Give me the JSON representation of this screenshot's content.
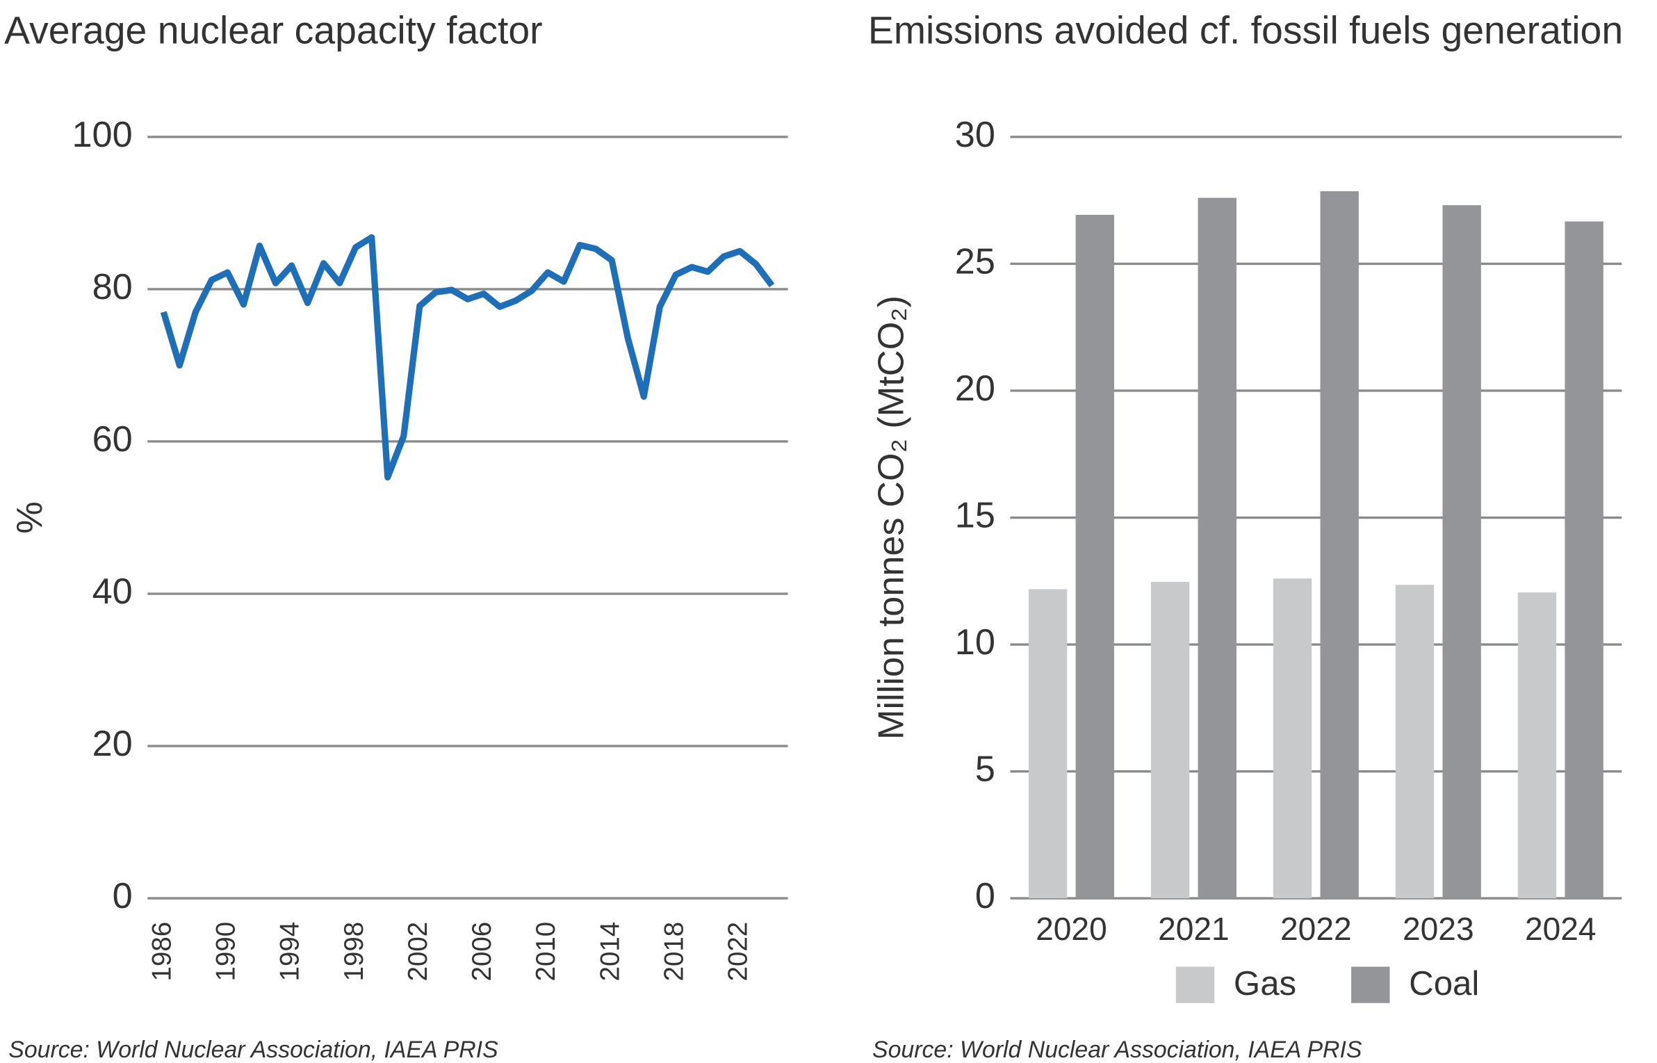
{
  "chart_data": [
    {
      "type": "line",
      "title": "Average nuclear capacity factor",
      "ylabel": "%",
      "x": [
        1986,
        1987,
        1988,
        1989,
        1990,
        1991,
        1992,
        1993,
        1994,
        1995,
        1996,
        1997,
        1998,
        1999,
        2000,
        2001,
        2002,
        2003,
        2004,
        2005,
        2006,
        2007,
        2008,
        2009,
        2010,
        2011,
        2012,
        2013,
        2014,
        2015,
        2016,
        2017,
        2018,
        2019,
        2020,
        2021,
        2022,
        2023,
        2024
      ],
      "series": [
        {
          "name": "Average nuclear capacity factor",
          "color": "#1f6fb8",
          "values": [
            77,
            70,
            77,
            81.2,
            82.2,
            78,
            85.7,
            80.8,
            83.1,
            78.2,
            83.4,
            80.8,
            85.5,
            86.8,
            55.3,
            60.7,
            77.8,
            79.6,
            79.9,
            78.7,
            79.4,
            77.7,
            78.5,
            79.8,
            82.2,
            81,
            85.8,
            85.3,
            83.8,
            73.6,
            65.9,
            77.7,
            81.9,
            82.9,
            82.3,
            84.3,
            85,
            83.3,
            80.5
          ]
        }
      ],
      "xlim": [
        1985,
        2025
      ],
      "xticks": [
        1986,
        1990,
        1994,
        1998,
        2002,
        2006,
        2010,
        2014,
        2018,
        2022
      ],
      "ylim": [
        0,
        100
      ],
      "yticks": [
        0,
        20,
        40,
        60,
        80,
        100
      ],
      "grid": true,
      "source": "Source: World Nuclear Association, IAEA PRIS"
    },
    {
      "type": "bar",
      "title": "Emissions avoided cf. fossil fuels generation",
      "ylabel": "Million tonnes CO₂ (MtCO₂)",
      "categories": [
        "2020",
        "2021",
        "2022",
        "2023",
        "2024"
      ],
      "series": [
        {
          "name": "Gas",
          "color": "#c8c9ca",
          "values": [
            12.18,
            12.47,
            12.6,
            12.35,
            12.05
          ]
        },
        {
          "name": "Coal",
          "color": "#939598",
          "values": [
            26.93,
            27.6,
            27.86,
            27.31,
            26.67
          ]
        }
      ],
      "ylim": [
        0,
        30
      ],
      "yticks": [
        0,
        5,
        10,
        15,
        20,
        25,
        30
      ],
      "grid": true,
      "legend": "bottom",
      "source": "Source: World Nuclear Association, IAEA PRIS"
    }
  ]
}
